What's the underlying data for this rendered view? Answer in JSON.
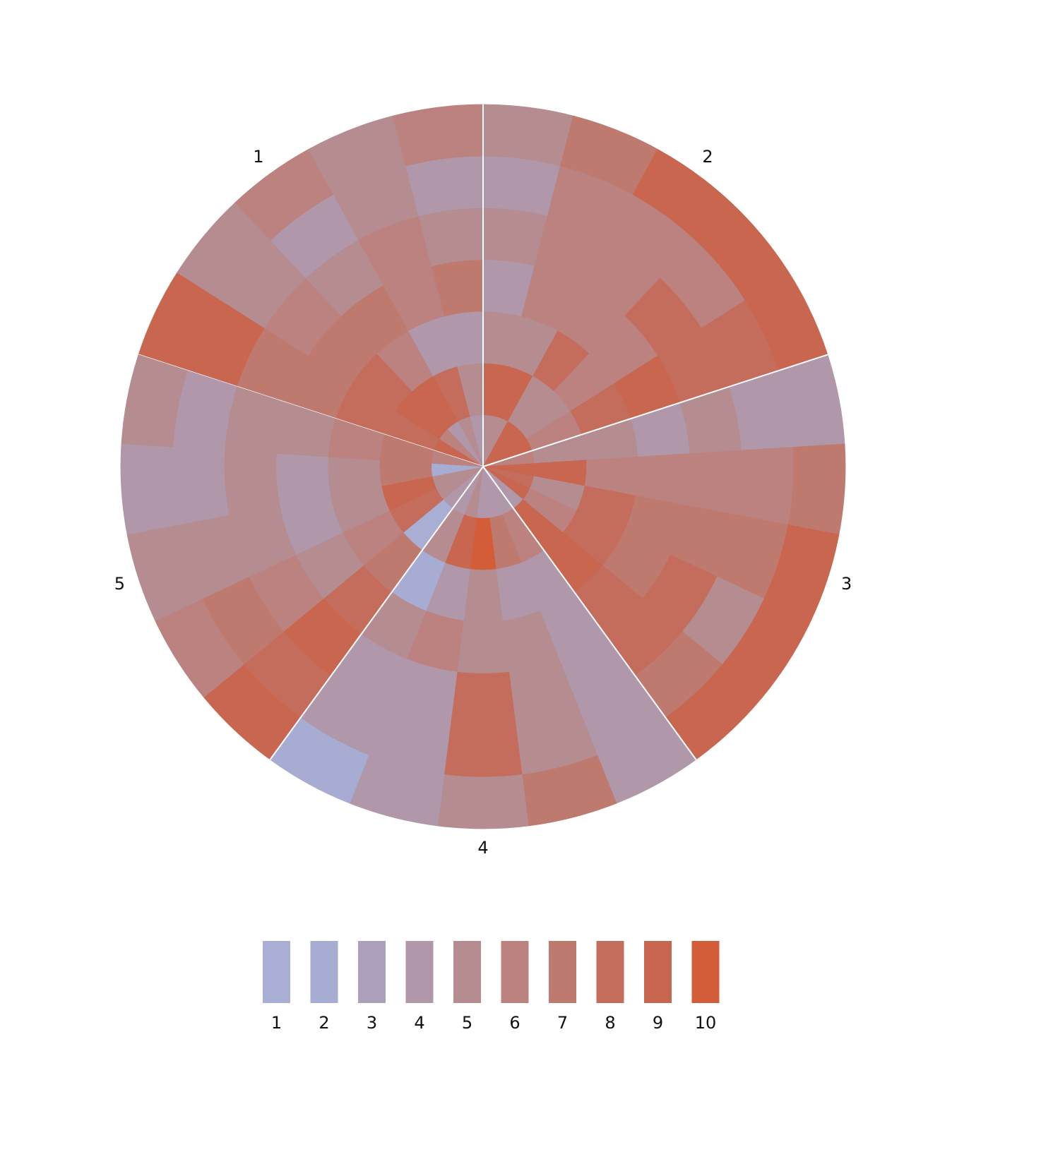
{
  "chart_data": {
    "type": "radial_heatmap",
    "groups": [
      {
        "name": "1",
        "sectors": [
          [
            9,
            8,
            8,
            7,
            7,
            9,
            9
          ],
          [
            6,
            9,
            8,
            7,
            6,
            5,
            5
          ],
          [
            4,
            9,
            6,
            7,
            5,
            4,
            6
          ],
          [
            5,
            8,
            4,
            6,
            6,
            5,
            5
          ],
          [
            4,
            5,
            4,
            7,
            5,
            4,
            6
          ]
        ]
      },
      {
        "name": "2",
        "sectors": [
          [
            5,
            9,
            5,
            4,
            5,
            4,
            5
          ],
          [
            5,
            9,
            5,
            6,
            6,
            6,
            7
          ],
          [
            9,
            5,
            8,
            6,
            6,
            6,
            9
          ],
          [
            9,
            5,
            6,
            6,
            8,
            6,
            9
          ],
          [
            9,
            6,
            8,
            9,
            8,
            8,
            9
          ]
        ]
      },
      {
        "name": "3",
        "sectors": [
          [
            6,
            5,
            5,
            4,
            5,
            4,
            4
          ],
          [
            9,
            9,
            6,
            6,
            6,
            6,
            7
          ],
          [
            8,
            5,
            8,
            7,
            7,
            7,
            9
          ],
          [
            9,
            6,
            8,
            7,
            8,
            5,
            9
          ],
          [
            4,
            9,
            9,
            8,
            8,
            7,
            9
          ]
        ]
      },
      {
        "name": "4",
        "sectors": [
          [
            4,
            6,
            4,
            4,
            4,
            4,
            4
          ],
          [
            4,
            7,
            4,
            5,
            5,
            5,
            7
          ],
          [
            4,
            10,
            5,
            5,
            8,
            8,
            5
          ],
          [
            5,
            9,
            4,
            6,
            4,
            4,
            4
          ],
          [
            4,
            5,
            2,
            5,
            4,
            4,
            2
          ]
        ]
      },
      {
        "name": "5",
        "sectors": [
          [
            4,
            1,
            7,
            8,
            9,
            8,
            9
          ],
          [
            5,
            8,
            6,
            5,
            6,
            7,
            6
          ],
          [
            5,
            9,
            5,
            4,
            5,
            5,
            5
          ],
          [
            2,
            7,
            5,
            4,
            5,
            4,
            4
          ],
          [
            6,
            7,
            6,
            5,
            5,
            4,
            5
          ]
        ]
      }
    ],
    "legend": {
      "values": [
        1,
        2,
        3,
        4,
        5,
        6,
        7,
        8,
        9,
        10
      ],
      "colors": [
        "#a9aed4",
        "#a7acd2",
        "#ada0bd",
        "#b097a9",
        "#b58d91",
        "#bb827f",
        "#bf7a6f",
        "#c46d5c",
        "#c9664f",
        "#d45d39"
      ]
    }
  }
}
